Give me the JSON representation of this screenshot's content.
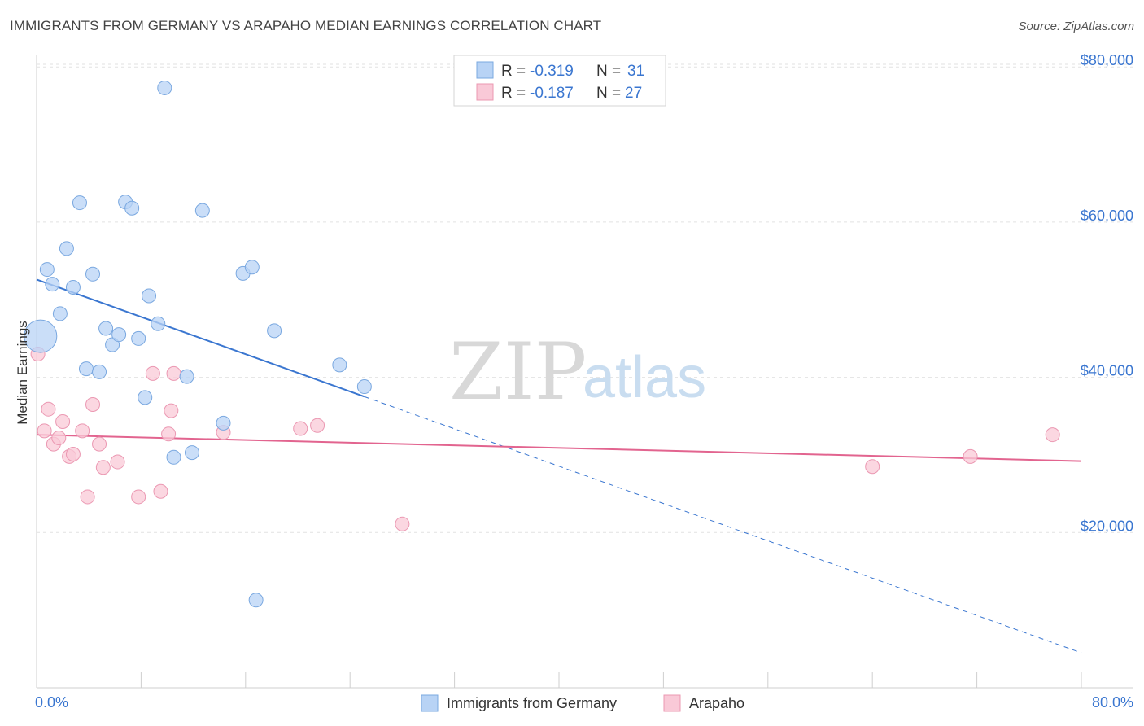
{
  "header": {
    "title": "IMMIGRANTS FROM GERMANY VS ARAPAHO MEDIAN EARNINGS CORRELATION CHART",
    "source": "Source: ZipAtlas.com"
  },
  "watermark": {
    "zip": "ZIP",
    "atlas": "atlas"
  },
  "legend": {
    "r_label": "R =",
    "n_label": "N =",
    "items": [
      {
        "name": "Immigrants from Germany",
        "r": "-0.319",
        "n": "31",
        "fill": "#b8d3f5",
        "stroke": "#7aa8e0"
      },
      {
        "name": "Arapaho",
        "r": "-0.187",
        "n": "27",
        "fill": "#f9c9d7",
        "stroke": "#eb98b2"
      }
    ]
  },
  "colors": {
    "blue": "#3a76d0",
    "pink": "#e2648f",
    "blue_point": "#b8d3f5",
    "pink_point": "#f9c9d7"
  },
  "chart_data": {
    "type": "scatter",
    "title": "IMMIGRANTS FROM GERMANY VS ARAPAHO MEDIAN EARNINGS CORRELATION CHART",
    "xlabel": "",
    "ylabel": "Median Earnings",
    "xlim": [
      0,
      80
    ],
    "ylim": [
      0,
      82000
    ],
    "x_tick_labels": [
      "0.0%",
      "80.0%"
    ],
    "y_ticks": [
      20000,
      40000,
      60000,
      80000
    ],
    "y_tick_labels": [
      "$20,000",
      "$40,000",
      "$60,000",
      "$80,000"
    ],
    "grid": true,
    "series": [
      {
        "name": "Immigrants from Germany",
        "points": [
          [
            0.3,
            45300,
            "large"
          ],
          [
            0.8,
            53900
          ],
          [
            1.2,
            52000
          ],
          [
            1.8,
            48200
          ],
          [
            2.3,
            56600
          ],
          [
            2.8,
            51600
          ],
          [
            3.3,
            62500
          ],
          [
            3.8,
            41100
          ],
          [
            4.3,
            53300
          ],
          [
            4.8,
            40700
          ],
          [
            5.3,
            46300
          ],
          [
            5.8,
            44200
          ],
          [
            6.3,
            45500
          ],
          [
            6.8,
            62600
          ],
          [
            7.3,
            61800
          ],
          [
            7.8,
            45000
          ],
          [
            8.3,
            37400
          ],
          [
            8.6,
            50500
          ],
          [
            9.3,
            46900
          ],
          [
            9.8,
            77300
          ],
          [
            10.5,
            29700
          ],
          [
            11.5,
            40100
          ],
          [
            11.9,
            30300
          ],
          [
            12.7,
            61500
          ],
          [
            14.3,
            34100
          ],
          [
            15.8,
            53400
          ],
          [
            16.5,
            54200
          ],
          [
            16.8,
            11300
          ],
          [
            18.2,
            46000
          ],
          [
            23.2,
            41600
          ],
          [
            25.1,
            38800
          ]
        ]
      },
      {
        "name": "Arapaho",
        "points": [
          [
            0.1,
            43000
          ],
          [
            0.6,
            33100
          ],
          [
            0.9,
            35900
          ],
          [
            1.3,
            31400
          ],
          [
            1.7,
            32200
          ],
          [
            2.0,
            34300
          ],
          [
            2.5,
            29800
          ],
          [
            2.8,
            30100
          ],
          [
            3.5,
            33100
          ],
          [
            3.9,
            24600
          ],
          [
            4.3,
            36500
          ],
          [
            4.8,
            31400
          ],
          [
            5.1,
            28400
          ],
          [
            6.2,
            29100
          ],
          [
            7.8,
            24600
          ],
          [
            8.9,
            40500
          ],
          [
            9.5,
            25300
          ],
          [
            10.1,
            32700
          ],
          [
            10.3,
            35700
          ],
          [
            10.5,
            40500
          ],
          [
            14.3,
            32900
          ],
          [
            20.2,
            33400
          ],
          [
            21.5,
            33800
          ],
          [
            28.0,
            21100
          ],
          [
            64.0,
            28500
          ],
          [
            71.5,
            29800
          ],
          [
            77.8,
            32600
          ]
        ]
      }
    ],
    "trendlines": [
      {
        "series": "Immigrants from Germany",
        "x_start": 0,
        "y_start": 52600,
        "x_solid_end": 25.1,
        "x_end": 80,
        "y_end": 4500
      },
      {
        "series": "Arapaho",
        "x_start": 0,
        "y_start": 32600,
        "x_end": 80,
        "y_end": 29200
      }
    ]
  },
  "bottom_legend": [
    "Immigrants from Germany",
    "Arapaho"
  ]
}
